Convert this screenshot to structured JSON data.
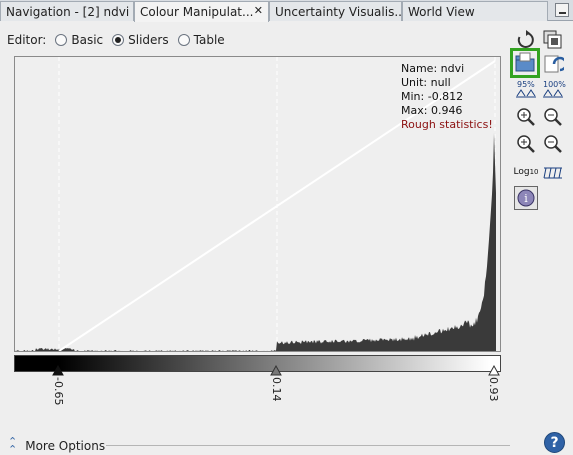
{
  "tabs": [
    {
      "label": "Navigation - [2] ndvi"
    },
    {
      "label": "Colour Manipulat...",
      "active": true
    },
    {
      "label": "Uncertainty Visualis..."
    },
    {
      "label": "World View"
    }
  ],
  "tab_close_glyph": "✕",
  "editor": {
    "label": "Editor:",
    "options": [
      {
        "label": "Basic",
        "checked": false
      },
      {
        "label": "Sliders",
        "checked": true
      },
      {
        "label": "Table",
        "checked": false
      }
    ]
  },
  "stats": {
    "name": "Name: ndvi",
    "unit": "Unit: null",
    "min": "Min: -0.812",
    "max": "Max: 0.946",
    "warning": "Rough statistics!"
  },
  "sliders": [
    {
      "label": "-0.65",
      "value": -0.65
    },
    {
      "label": "0.14",
      "value": 0.14
    },
    {
      "label": "0.93",
      "value": 0.93
    }
  ],
  "toolbar": {
    "zoom_95_label": "95%",
    "zoom_100_label": "100%",
    "log_label": "Log",
    "log_sub": "10"
  },
  "more_options": "More Options",
  "help_glyph": "?",
  "colors": {
    "highlight": "#33a321",
    "warning": "#8b1010",
    "histogram": "#3a3a3a"
  }
}
